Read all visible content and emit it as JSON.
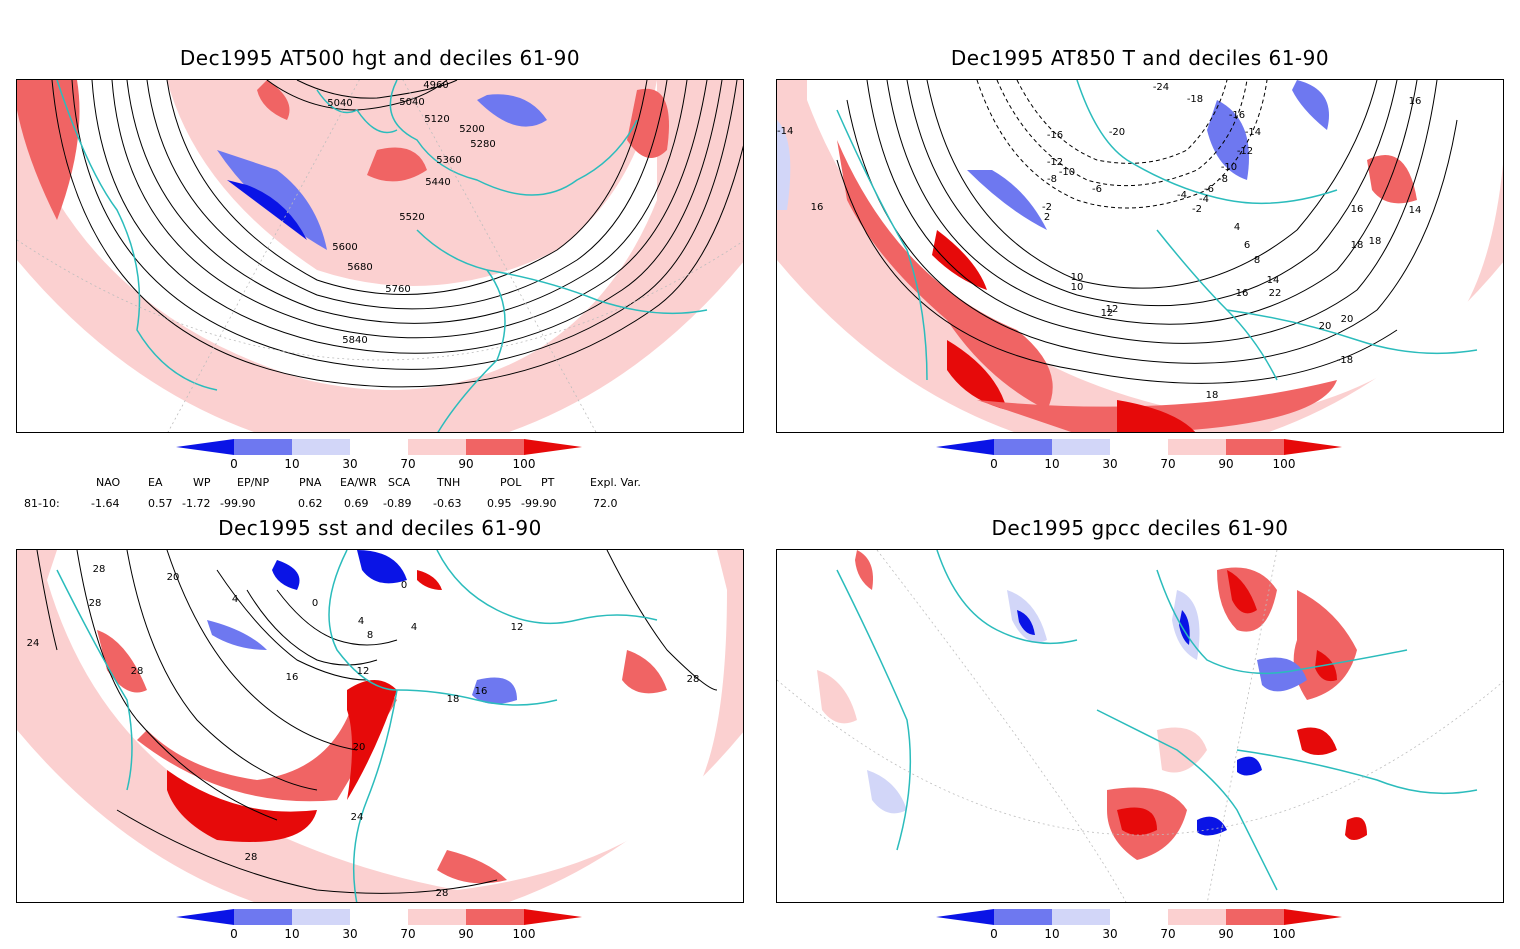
{
  "panels": [
    {
      "id": "p1",
      "title": "Dec1995 AT500 hgt and deciles 61-90",
      "contour_labels": [
        "4960",
        "5040",
        "5040",
        "5120",
        "5200",
        "5280",
        "5360",
        "5440",
        "5520",
        "5600",
        "5680",
        "5760",
        "5840"
      ]
    },
    {
      "id": "p2",
      "title": "Dec1995 AT850 T and deciles 61-90",
      "contour_labels": [
        "-24",
        "-18",
        "-16",
        "-14",
        "-12",
        "-10",
        "-8",
        "-6",
        "-4",
        "-2",
        "-16",
        "-12",
        "-10",
        "-8",
        "-20",
        "-6",
        "-4",
        "-2",
        "2",
        "4",
        "6",
        "8",
        "10",
        "12",
        "14",
        "16",
        "18",
        "20",
        "22",
        "-14",
        "16",
        "16",
        "14",
        "10",
        "12",
        "16",
        "18",
        "20",
        "-18",
        "18"
      ]
    },
    {
      "id": "p3",
      "title": "Dec1995 sst and deciles 61-90",
      "contour_labels": [
        "28",
        "20",
        "28",
        "24",
        "4",
        "0",
        "4",
        "8",
        "12",
        "16",
        "20",
        "24",
        "28",
        "18",
        "16",
        "28",
        "28",
        "28",
        "12",
        "4",
        "0"
      ]
    },
    {
      "id": "p4",
      "title": "Dec1995 gpcc deciles 61-90",
      "contour_labels": []
    }
  ],
  "colorbar": {
    "labels": [
      "0",
      "10",
      "30",
      "70",
      "90",
      "100"
    ],
    "colors": [
      "#0a14e6",
      "#6e78f0",
      "#d2d6f8",
      "#ffffff",
      "#fbd0d0",
      "#f06464",
      "#e60a0a"
    ]
  },
  "indices": {
    "row_label": "81-10:",
    "headers": [
      "NAO",
      "EA",
      "WP",
      "EP/NP",
      "PNA",
      "EA/WR",
      "SCA",
      "TNH",
      "POL",
      "PT",
      "Expl. Var."
    ],
    "values": [
      "-1.64",
      "0.57",
      "-1.72",
      "-99.90",
      "0.62",
      "0.69",
      "-0.89",
      "-0.63",
      "0.95",
      "-99.90",
      "72.0"
    ]
  },
  "colors": {
    "coast": "#2bbcbc",
    "contour": "#000000",
    "pale_red": "#fbd0d0",
    "mid_red": "#f06464",
    "deep_red": "#e60a0a",
    "pale_blue": "#d2d6f8",
    "mid_blue": "#6e78f0",
    "deep_blue": "#0a14e6"
  }
}
